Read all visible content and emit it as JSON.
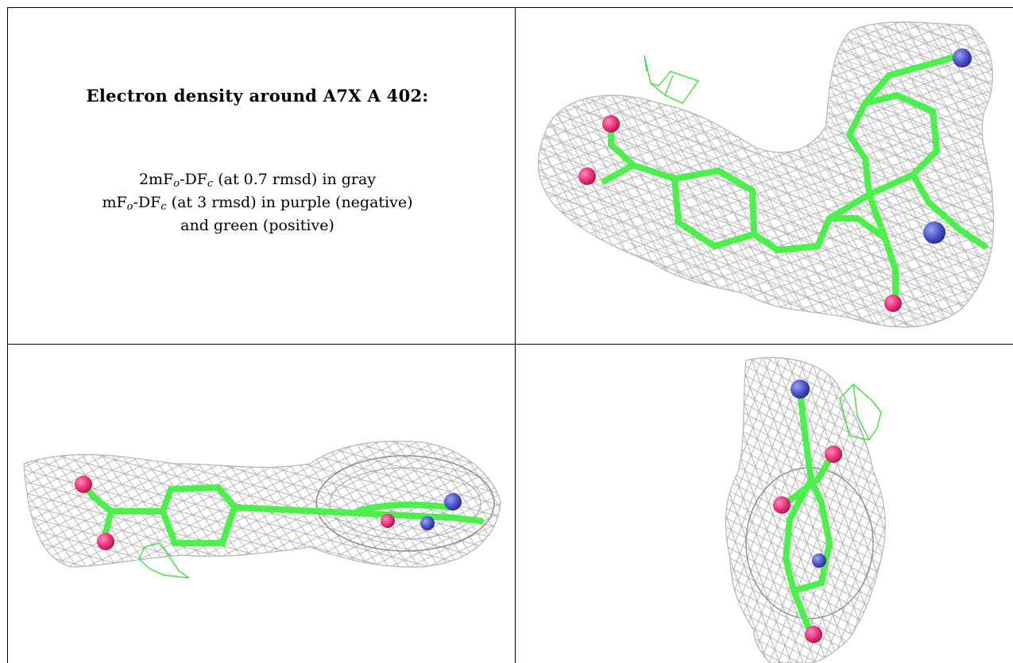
{
  "caption": {
    "title": "Electron density around A7X A 402:",
    "line1": {
      "pre": "2mF",
      "sub1": "o",
      "mid": "-DF",
      "sub2": "c",
      "post": " (at 0.7 rmsd) in gray"
    },
    "line2": {
      "pre": "mF",
      "sub1": "o",
      "mid": "-DF",
      "sub2": "c",
      "post": " (at 3 rmsd) in purple (negative)"
    },
    "line3": "and green (positive)"
  },
  "colors": {
    "mesh_gray": "#b4b4b4",
    "mesh_green_positive": "#33e033",
    "mesh_purple_negative": "#a030c0",
    "carbon_stick": "#4cf04c",
    "oxygen": "#e8307a",
    "nitrogen": "#4a50c8",
    "grid_lines": "#000000"
  },
  "panels": [
    {
      "id": "top-right",
      "view": "front",
      "ligand": "A7X"
    },
    {
      "id": "bottom-left",
      "view": "side",
      "ligand": "A7X"
    },
    {
      "id": "bottom-right",
      "view": "end-on",
      "ligand": "A7X"
    }
  ]
}
